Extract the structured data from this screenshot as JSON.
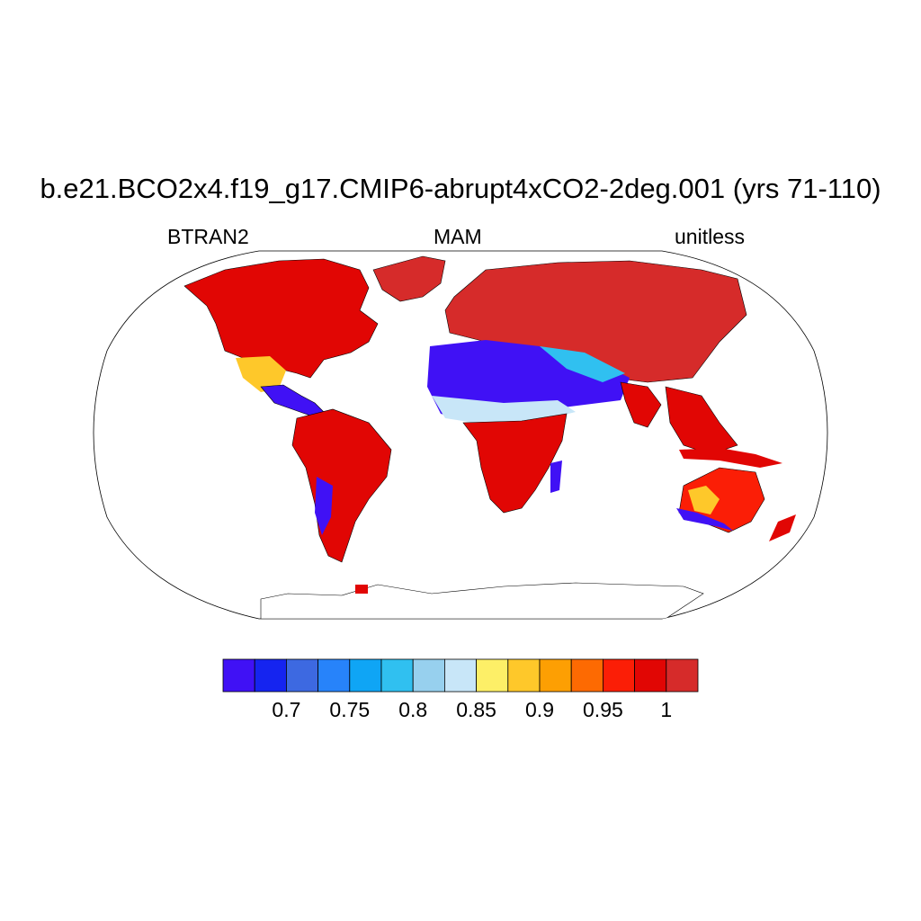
{
  "title": "b.e21.BCO2x4.f19_g17.CMIP6-abrupt4xCO2-2deg.001 (yrs 71-110)",
  "subtitle_left": "BTRAN2",
  "subtitle_center": "MAM",
  "subtitle_right": "unitless",
  "colorbar": {
    "colors": [
      "#4011f5",
      "#1524f0",
      "#3d69e1",
      "#2783fa",
      "#0fa5f5",
      "#30c0f0",
      "#97d0ee",
      "#c8e6f8",
      "#fdef67",
      "#fec82a",
      "#fd9f03",
      "#fd6a02",
      "#fb1e06",
      "#e10604",
      "#d62b2a"
    ],
    "tick_labels": [
      "0.7",
      "0.75",
      "0.8",
      "0.85",
      "0.9",
      "0.95",
      "1"
    ],
    "tick_positions_index": [
      2,
      4,
      6,
      8,
      10,
      12,
      14
    ]
  },
  "map": {
    "projection": "robinson",
    "regions": [
      {
        "name": "north-america",
        "color": "#e10604"
      },
      {
        "name": "greenland",
        "color": "#d62b2a"
      },
      {
        "name": "central-america",
        "color": "#4011f5"
      },
      {
        "name": "south-america",
        "color": "#e10604"
      },
      {
        "name": "sahara",
        "color": "#4011f5"
      },
      {
        "name": "africa",
        "color": "#e10604"
      },
      {
        "name": "eurasia",
        "color": "#d62b2a"
      },
      {
        "name": "middle-east",
        "color": "#30c0f0"
      },
      {
        "name": "southeast-asia",
        "color": "#e10604"
      },
      {
        "name": "australia",
        "color": "#fb1e06"
      },
      {
        "name": "antarctica-coast",
        "color": "#e10604"
      }
    ]
  }
}
